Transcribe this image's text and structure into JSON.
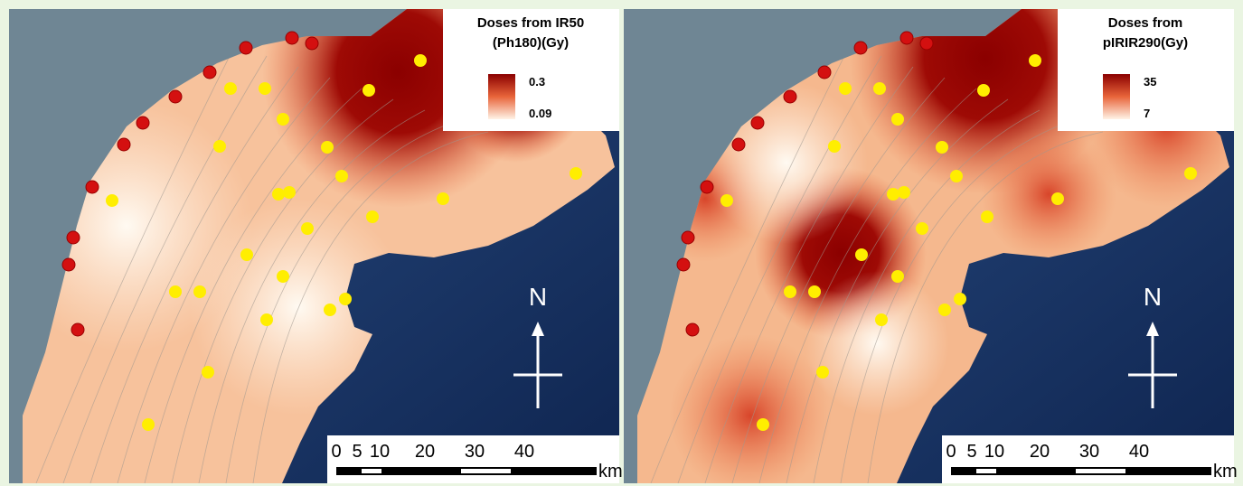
{
  "panels": [
    {
      "legend_title": [
        "Doses from IR50",
        "(Ph180)(Gy)"
      ],
      "legend_max": "0.3",
      "legend_min": "0.09",
      "north": "N",
      "scale_labels": [
        "0",
        "5",
        "10",
        "20",
        "30",
        "40"
      ],
      "scale_unit": "km"
    },
    {
      "legend_title": [
        "Doses from",
        "pIRIR290(Gy)"
      ],
      "legend_max": "35",
      "legend_min": "7",
      "north": "N",
      "scale_labels": [
        "0",
        "5",
        "10",
        "20",
        "30",
        "40"
      ],
      "scale_unit": "km"
    }
  ]
}
